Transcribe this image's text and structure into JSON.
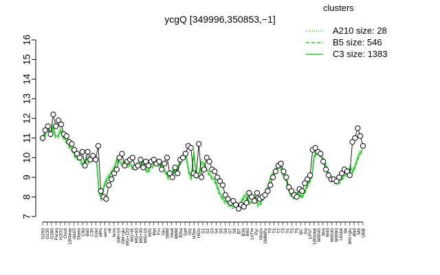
{
  "chart_data": {
    "type": "line",
    "title": "ycgQ [349996,350853,−1]",
    "xlabel": "",
    "ylabel": "",
    "ylim": [
      7,
      16
    ],
    "yticks": [
      7,
      8,
      9,
      10,
      11,
      12,
      13,
      14,
      15,
      16
    ],
    "grid": false,
    "legend": {
      "title": "clusters",
      "placement": "top-right",
      "color": "#22cc22",
      "entries": [
        {
          "label": "A210 size: 28",
          "style": "dotted"
        },
        {
          "label": "B5 size: 546",
          "style": "dashed"
        },
        {
          "label": "C3 size: 1383",
          "style": "solid"
        }
      ]
    },
    "x_tick_labels": [
      "G150",
      "G135",
      "G180",
      "Paraq",
      "H2O2",
      "Oxctl",
      "LBGexp",
      "dia15",
      "Diami",
      "C90",
      "dia5",
      "C30",
      "Cold",
      "HPh",
      "aero",
      "nit",
      "ferm",
      "GM+10",
      "GM+glu",
      "MG+120",
      "MG+t5",
      "MG+60",
      "MG+30",
      "MG+15",
      "M/G",
      "Mal",
      "Fru",
      "Glu",
      "SMM",
      "Heat",
      "BMM",
      "Etha",
      "Salt",
      "Gly",
      "HTim",
      "HiOs",
      "S1",
      "S2",
      "S3",
      "S4",
      "S5",
      "S6",
      "S7",
      "S8",
      "BT",
      "B36",
      "B60",
      "LoTm",
      "Pyr",
      "Gluco",
      "SMMPy",
      "T0",
      "T1",
      "T2",
      "T3",
      "T4",
      "T5",
      "T6",
      "BC",
      "Sw",
      "LPhT",
      "LBGstat",
      "M0045",
      "Mm",
      "M40",
      "M0030",
      "M0090",
      "Lbstat",
      "Sb",
      "MG+glu",
      "dia0",
      "M9",
      "UNB"
    ],
    "profile": [
      10.9,
      11.2,
      11.5,
      11.1,
      11.6,
      11.1,
      11.1,
      11.4,
      11.1,
      10.9,
      10.7,
      10.5,
      10.3,
      10.0,
      10.0,
      9.8,
      9.6,
      10.0,
      9.8,
      10.0,
      9.9,
      9.9,
      8.3,
      7.9,
      8.6,
      8.9,
      9.1,
      9.3,
      9.5,
      9.9,
      9.8,
      9.7,
      9.8,
      9.6,
      9.7,
      9.5,
      9.6,
      9.6,
      9.6,
      9.8,
      9.5,
      9.3,
      9.5,
      9.6,
      9.8,
      9.6,
      9.7,
      9.4,
      9.3,
      9.0,
      9.2,
      9.4,
      9.2,
      9.6,
      9.8,
      10.2,
      10.1,
      9.3,
      9.0,
      10.3,
      9.0,
      9.2,
      9.8,
      9.7,
      9.4,
      9.2,
      9.0,
      8.9,
      8.6,
      8.2,
      8.0,
      7.8,
      7.7,
      7.6,
      7.5,
      7.6,
      7.5,
      7.6,
      7.9,
      8.1,
      7.9,
      7.7,
      7.8,
      8.0,
      7.6,
      7.7,
      7.9,
      8.3,
      8.5,
      9.0,
      9.2,
      9.4,
      9.6,
      9.5,
      9.1,
      8.9,
      8.4,
      8.1,
      8.0,
      8.2,
      8.3,
      8.0,
      8.2,
      8.5,
      8.8,
      9.0,
      10.1,
      10.3,
      10.2,
      10.0,
      9.8,
      9.4,
      9.0,
      8.9,
      8.8,
      8.7,
      8.8,
      9.0,
      9.1,
      9.2,
      9.5,
      9.3,
      9.6,
      10.0,
      10.3,
      10.4
    ],
    "points": [
      [
        0,
        11.0
      ],
      [
        1,
        11.4
      ],
      [
        2,
        11.6
      ],
      [
        3,
        11.2
      ],
      [
        4,
        12.2
      ],
      [
        5,
        11.6
      ],
      [
        6,
        11.9
      ],
      [
        7,
        11.7
      ],
      [
        8,
        11.2
      ],
      [
        9,
        11.1
      ],
      [
        10,
        10.8
      ],
      [
        11,
        10.7
      ],
      [
        12,
        10.4
      ],
      [
        13,
        10.2
      ],
      [
        14,
        10.0
      ],
      [
        15,
        10.3
      ],
      [
        16,
        9.6
      ],
      [
        17,
        10.3
      ],
      [
        18,
        9.9
      ],
      [
        19,
        10.1
      ],
      [
        20,
        9.9
      ],
      [
        21,
        10.6
      ],
      [
        22,
        8.3
      ],
      [
        23,
        8.0
      ],
      [
        24,
        7.9
      ],
      [
        25,
        8.6
      ],
      [
        26,
        8.9
      ],
      [
        27,
        9.2
      ],
      [
        28,
        9.4
      ],
      [
        29,
        10.0
      ],
      [
        30,
        10.2
      ],
      [
        31,
        9.6
      ],
      [
        32,
        9.8
      ],
      [
        33,
        9.9
      ],
      [
        34,
        10.0
      ],
      [
        35,
        9.5
      ],
      [
        36,
        9.6
      ],
      [
        37,
        9.9
      ],
      [
        38,
        9.5
      ],
      [
        39,
        9.8
      ],
      [
        40,
        9.6
      ],
      [
        41,
        9.8
      ],
      [
        42,
        9.9
      ],
      [
        43,
        9.7
      ],
      [
        44,
        9.8
      ],
      [
        45,
        9.4
      ],
      [
        46,
        9.7
      ],
      [
        47,
        10.0
      ],
      [
        48,
        9.2
      ],
      [
        49,
        9.0
      ],
      [
        50,
        9.5
      ],
      [
        51,
        9.2
      ],
      [
        52,
        9.9
      ],
      [
        53,
        10.0
      ],
      [
        54,
        10.2
      ],
      [
        55,
        10.6
      ],
      [
        56,
        10.5
      ],
      [
        57,
        9.2
      ],
      [
        58,
        9.1
      ],
      [
        59,
        10.7
      ],
      [
        60,
        9.0
      ],
      [
        61,
        9.4
      ],
      [
        62,
        10.0
      ],
      [
        63,
        9.8
      ],
      [
        64,
        9.4
      ],
      [
        65,
        9.3
      ],
      [
        66,
        9.0
      ],
      [
        67,
        8.8
      ],
      [
        68,
        8.6
      ],
      [
        69,
        8.1
      ],
      [
        70,
        7.9
      ],
      [
        71,
        7.7
      ],
      [
        72,
        7.8
      ],
      [
        73,
        7.6
      ],
      [
        74,
        7.4
      ],
      [
        75,
        7.6
      ],
      [
        76,
        7.5
      ],
      [
        77,
        7.7
      ],
      [
        78,
        8.2
      ],
      [
        79,
        8.0
      ],
      [
        80,
        7.8
      ],
      [
        81,
        8.2
      ],
      [
        82,
        7.9
      ],
      [
        83,
        8.0
      ],
      [
        84,
        8.1
      ],
      [
        85,
        8.3
      ],
      [
        86,
        8.6
      ],
      [
        87,
        9.0
      ],
      [
        88,
        9.3
      ],
      [
        89,
        9.6
      ],
      [
        90,
        9.7
      ],
      [
        91,
        9.3
      ],
      [
        92,
        9.0
      ],
      [
        93,
        8.5
      ],
      [
        94,
        8.3
      ],
      [
        95,
        8.1
      ],
      [
        96,
        8.0
      ],
      [
        97,
        8.4
      ],
      [
        98,
        8.3
      ],
      [
        99,
        8.7
      ],
      [
        100,
        8.9
      ],
      [
        101,
        9.1
      ],
      [
        102,
        10.4
      ],
      [
        103,
        10.5
      ],
      [
        104,
        10.3
      ],
      [
        105,
        10.2
      ],
      [
        106,
        9.8
      ],
      [
        107,
        9.4
      ],
      [
        108,
        9.1
      ],
      [
        109,
        8.9
      ],
      [
        110,
        8.9
      ],
      [
        111,
        8.8
      ],
      [
        112,
        9.0
      ],
      [
        113,
        9.2
      ],
      [
        114,
        9.4
      ],
      [
        115,
        9.3
      ],
      [
        116,
        9.1
      ],
      [
        117,
        10.8
      ],
      [
        118,
        11.0
      ],
      [
        119,
        11.5
      ],
      [
        120,
        11.1
      ],
      [
        121,
        10.6
      ]
    ]
  }
}
